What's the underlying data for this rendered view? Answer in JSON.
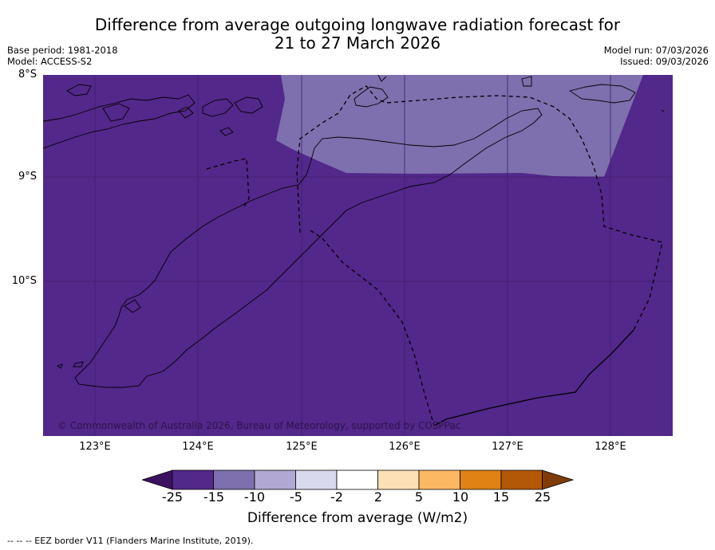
{
  "header": {
    "title_line1": "Difference from average outgoing longwave radiation forecast for",
    "title_line2": "21 to 27 March 2026",
    "base_period": "Base period: 1981-2018",
    "model": "Model: ACCESS-S2",
    "model_run": "Model run: 07/03/2026",
    "issued": "Issued: 09/03/2026"
  },
  "map": {
    "latitude_labels": [
      "8°S",
      "9°S",
      "10°S"
    ],
    "longitude_labels": [
      "123°E",
      "124°E",
      "125°E",
      "126°E",
      "127°E",
      "128°E"
    ],
    "copyright": "© Commonwealth of Australia 2026, Bureau of Meteorology, supported by COSPPac",
    "colors": {
      "background_anomaly": "#52288a",
      "light_anomaly": "#7e6fae",
      "gridline": "#3e1e6c",
      "coastline": "#000000"
    }
  },
  "legend": {
    "title": "Difference from average (W/m2)",
    "ticks": [
      "-25",
      "-15",
      "-10",
      "-5",
      "-2",
      "2",
      "5",
      "10",
      "15",
      "25"
    ],
    "colors": [
      "#3b1260",
      "#52288a",
      "#7e6fae",
      "#b1a8d3",
      "#d9d9ee",
      "#ffffff",
      "#fde0b5",
      "#fdb863",
      "#e08214",
      "#b35806",
      "#7f3b08"
    ]
  },
  "footnote": "--  --  -- EEZ border V11 (Flanders Marine Institute, 2019)."
}
